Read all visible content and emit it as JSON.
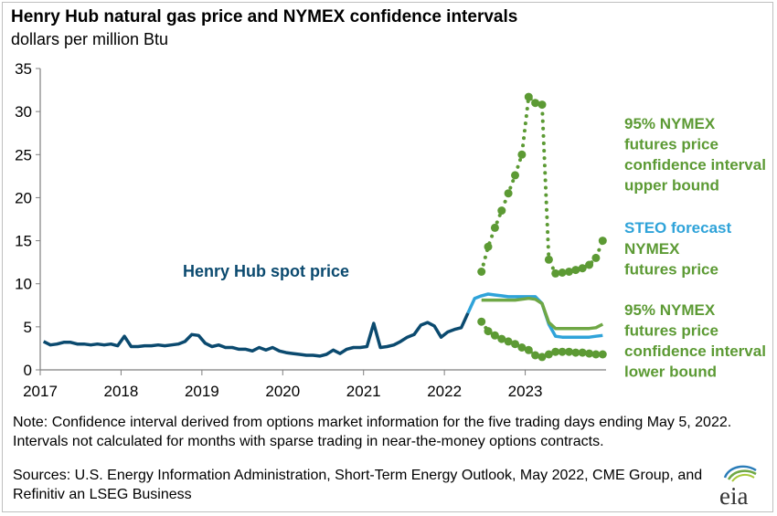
{
  "title": "Henry Hub natural gas price and NYMEX confidence intervals",
  "subtitle": "dollars per million  Btu",
  "note": "Note: Confidence interval derived from options market information for the five trading days ending May 5, 2022. Intervals not calculated for months with sparse trading in near-the-money options contracts.",
  "sources": "Sources: U.S. Energy Information Administration, Short-Term Energy Outlook, May 2022, CME Group, and Refinitiv an LSEG Business",
  "logo": {
    "text": "eia"
  },
  "colors": {
    "spot": "#0b4a6f",
    "steo": "#2fa3d9",
    "nymex": "#6fa745",
    "interval": "#5c9a34",
    "axis": "#7f7f7f"
  },
  "chart_data": {
    "type": "line",
    "x_ticks": [
      "2017",
      "2018",
      "2019",
      "2020",
      "2021",
      "2022",
      "2023"
    ],
    "y_ticks": [
      "0",
      "5",
      "10",
      "15",
      "20",
      "25",
      "30",
      "35"
    ],
    "ylim": [
      0,
      35
    ],
    "xlim": [
      "2017-01",
      "2023-12"
    ],
    "grid": false,
    "annotations": {
      "spot": "Henry Hub spot price",
      "upper": [
        "95% NYMEX",
        "futures price",
        "confidence interval",
        "upper bound"
      ],
      "steo_a": "STEO",
      "steo_b": " forecast",
      "nymex": [
        "NYMEX",
        "futures price"
      ],
      "lower": [
        "95% NYMEX",
        "futures price",
        "confidence interval",
        "lower bound"
      ]
    },
    "series": [
      {
        "name": "Henry Hub spot price",
        "style": "solid",
        "x": [
          "2017-01",
          "2017-02",
          "2017-03",
          "2017-04",
          "2017-05",
          "2017-06",
          "2017-07",
          "2017-08",
          "2017-09",
          "2017-10",
          "2017-11",
          "2017-12",
          "2018-01",
          "2018-02",
          "2018-03",
          "2018-04",
          "2018-05",
          "2018-06",
          "2018-07",
          "2018-08",
          "2018-09",
          "2018-10",
          "2018-11",
          "2018-12",
          "2019-01",
          "2019-02",
          "2019-03",
          "2019-04",
          "2019-05",
          "2019-06",
          "2019-07",
          "2019-08",
          "2019-09",
          "2019-10",
          "2019-11",
          "2019-12",
          "2020-01",
          "2020-02",
          "2020-03",
          "2020-04",
          "2020-05",
          "2020-06",
          "2020-07",
          "2020-08",
          "2020-09",
          "2020-10",
          "2020-11",
          "2020-12",
          "2021-01",
          "2021-02",
          "2021-03",
          "2021-04",
          "2021-05",
          "2021-06",
          "2021-07",
          "2021-08",
          "2021-09",
          "2021-10",
          "2021-11",
          "2021-12",
          "2022-01",
          "2022-02",
          "2022-03",
          "2022-04"
        ],
        "values": [
          3.3,
          2.9,
          3.0,
          3.2,
          3.2,
          3.0,
          3.0,
          2.9,
          3.0,
          2.9,
          3.0,
          2.8,
          3.9,
          2.7,
          2.7,
          2.8,
          2.8,
          2.9,
          2.8,
          2.9,
          3.0,
          3.3,
          4.1,
          4.0,
          3.1,
          2.7,
          2.9,
          2.6,
          2.6,
          2.4,
          2.4,
          2.2,
          2.6,
          2.3,
          2.6,
          2.2,
          2.0,
          1.9,
          1.8,
          1.7,
          1.7,
          1.6,
          1.8,
          2.3,
          1.9,
          2.4,
          2.6,
          2.6,
          2.7,
          5.4,
          2.6,
          2.7,
          2.9,
          3.3,
          3.8,
          4.1,
          5.2,
          5.5,
          5.1,
          3.8,
          4.4,
          4.7,
          4.9,
          6.6
        ]
      },
      {
        "name": "STEO forecast",
        "style": "solid",
        "x": [
          "2022-04",
          "2022-05",
          "2022-06",
          "2022-07",
          "2022-08",
          "2022-09",
          "2022-10",
          "2022-11",
          "2022-12",
          "2023-01",
          "2023-02",
          "2023-03",
          "2023-04",
          "2023-05",
          "2023-06",
          "2023-07",
          "2023-08",
          "2023-09",
          "2023-10",
          "2023-11",
          "2023-12"
        ],
        "values": [
          6.6,
          8.3,
          8.6,
          8.8,
          8.7,
          8.6,
          8.5,
          8.5,
          8.5,
          8.5,
          8.5,
          7.7,
          5.3,
          3.9,
          3.8,
          3.8,
          3.8,
          3.8,
          3.8,
          3.9,
          4.0
        ]
      },
      {
        "name": "NYMEX futures price",
        "style": "solid",
        "x": [
          "2022-06",
          "2022-07",
          "2022-08",
          "2022-09",
          "2022-10",
          "2022-11",
          "2022-12",
          "2023-01",
          "2023-02",
          "2023-03",
          "2023-04",
          "2023-05",
          "2023-06",
          "2023-07",
          "2023-08",
          "2023-09",
          "2023-10",
          "2023-11",
          "2023-12"
        ],
        "values": [
          8.1,
          8.1,
          8.1,
          8.1,
          8.1,
          8.1,
          8.2,
          8.3,
          8.2,
          7.7,
          5.5,
          4.8,
          4.8,
          4.8,
          4.8,
          4.8,
          4.8,
          4.9,
          5.3
        ]
      },
      {
        "name": "95% NYMEX futures price confidence interval upper bound",
        "style": "dotted",
        "x": [
          "2022-06",
          "2022-07",
          "2022-08",
          "2022-09",
          "2022-10",
          "2022-11",
          "2022-12",
          "2023-01",
          "2023-02",
          "2023-03",
          "2023-04",
          "2023-05",
          "2023-06",
          "2023-07",
          "2023-08",
          "2023-09",
          "2023-10",
          "2023-11",
          "2023-12"
        ],
        "values": [
          11.4,
          14.3,
          16.5,
          18.5,
          20.5,
          22.6,
          25.0,
          31.7,
          31.0,
          30.8,
          12.8,
          11.2,
          11.3,
          11.4,
          11.6,
          11.8,
          12.2,
          13.0,
          15.0
        ]
      },
      {
        "name": "95% NYMEX futures price confidence interval lower bound",
        "style": "dotted",
        "x": [
          "2022-06",
          "2022-07",
          "2022-08",
          "2022-09",
          "2022-10",
          "2022-11",
          "2022-12",
          "2023-01",
          "2023-02",
          "2023-03",
          "2023-04",
          "2023-05",
          "2023-06",
          "2023-07",
          "2023-08",
          "2023-09",
          "2023-10",
          "2023-11",
          "2023-12"
        ],
        "values": [
          5.6,
          4.5,
          4.0,
          3.6,
          3.3,
          3.0,
          2.6,
          2.3,
          1.7,
          1.5,
          1.8,
          2.1,
          2.1,
          2.1,
          2.0,
          2.0,
          1.9,
          1.8,
          1.8
        ]
      }
    ]
  }
}
